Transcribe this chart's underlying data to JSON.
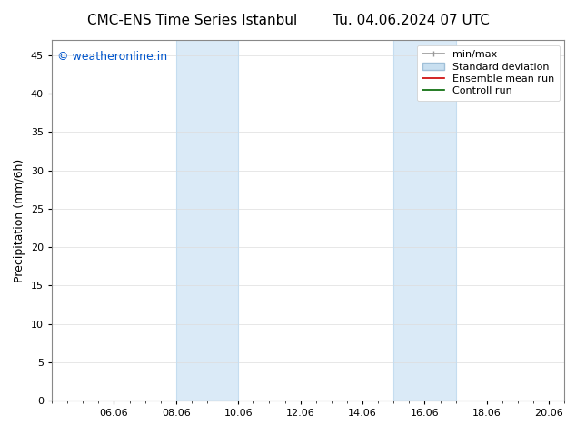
{
  "title_left": "CMC-ENS Time Series Istanbul",
  "title_right": "Tu. 04.06.2024 07 UTC",
  "ylabel": "Precipitation (mm/6h)",
  "ylim": [
    0,
    47
  ],
  "yticks": [
    0,
    5,
    10,
    15,
    20,
    25,
    30,
    35,
    40,
    45
  ],
  "xlim": [
    0,
    16
  ],
  "xtick_positions": [
    2,
    4,
    6,
    8,
    10,
    12,
    14,
    16
  ],
  "xtick_labels": [
    "06.06",
    "08.06",
    "10.06",
    "12.06",
    "14.06",
    "16.06",
    "18.06",
    "20.06"
  ],
  "shaded_regions": [
    {
      "x_start": 4.0,
      "x_end": 6.0
    },
    {
      "x_start": 11.0,
      "x_end": 13.0
    }
  ],
  "shaded_color": "#daeaf7",
  "vline_color": "#c5ddf0",
  "watermark_text": "© weatheronline.in",
  "watermark_color": "#0055cc",
  "watermark_fontsize": 9,
  "background_color": "#ffffff",
  "plot_bg_color": "#ffffff",
  "grid_color": "#dddddd",
  "title_fontsize": 11,
  "axis_label_fontsize": 9,
  "tick_fontsize": 8,
  "legend_fontsize": 8,
  "spine_color": "#888888",
  "legend_min_max_color": "#999999",
  "legend_std_color": "#c8dff0",
  "legend_std_edge_color": "#a0c0d8",
  "legend_mean_color": "#cc0000",
  "legend_control_color": "#006600"
}
